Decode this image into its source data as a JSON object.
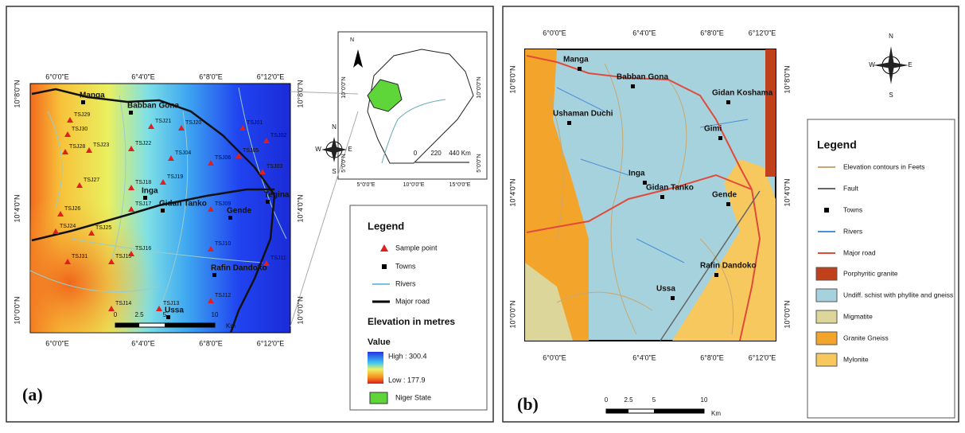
{
  "panel_a": {
    "label": "(a)",
    "x_labels": [
      "6°0'0\"E",
      "6°4'0\"E",
      "6°8'0\"E",
      "6°12'0\"E"
    ],
    "y_labels": [
      "10°8'0\"N",
      "10°4'0\"N",
      "10°0'0\"N"
    ],
    "towns": [
      "Manga",
      "Babban Gona",
      "Inga",
      "Gidan Tanko",
      "Gende",
      "Tegina",
      "Rafin Dandoko",
      "Ussa"
    ],
    "samples": [
      "TSJ29",
      "TSJ30",
      "TSJ28",
      "TSJ23",
      "TSJ22",
      "TSJ21",
      "TSJ20",
      "TSJ01",
      "TSJ02",
      "TSJ05",
      "TSJ04",
      "TSJ06",
      "TSJ03",
      "TSJ27",
      "TSJ18",
      "TSJ19",
      "TSJ26",
      "TSJ17",
      "TSJ09",
      "TSJ24",
      "TSJ25",
      "TSJ31",
      "TSJ15",
      "TSJ16",
      "TSJ10",
      "TSJ11",
      "TSJ14",
      "TSJ13",
      "TSJ12"
    ],
    "compass": [
      "N",
      "W",
      "E",
      "S"
    ],
    "inset": {
      "x_labels": [
        "5°0'0\"E",
        "10°0'0\"E",
        "15°0'0\"E"
      ],
      "y_labels": [
        "10°0'0\"N",
        "5°0'0\"N"
      ],
      "north": "N",
      "scale": [
        "0",
        "220",
        "440 Km"
      ]
    },
    "legend": {
      "title": "Legend",
      "items": [
        "Sample point",
        "Towns",
        "Rivers",
        "Major road"
      ],
      "elevation_title": "Elevation in metres",
      "value_title": "Value",
      "high": "High : 300.4",
      "low": "Low : 177.9",
      "niger": "Niger State"
    },
    "scale": [
      "0",
      "2.5",
      "5",
      "10",
      "Km"
    ]
  },
  "panel_b": {
    "label": "(b)",
    "x_labels": [
      "6°0'0\"E",
      "6°4'0\"E",
      "6°8'0\"E",
      "6°12'0\"E"
    ],
    "y_labels": [
      "10°8'0\"N",
      "10°4'0\"N",
      "10°0'0\"N"
    ],
    "towns": [
      "Manga",
      "Babban Gona",
      "Ushaman Duchi",
      "Gidan Koshama",
      "Gimi",
      "Inga",
      "Gidan Tanko",
      "Gende",
      "Rafin Dandoko",
      "Ussa"
    ],
    "compass": [
      "N",
      "W",
      "E",
      "S"
    ],
    "legend": {
      "title": "Legend",
      "items": [
        "Elevation contours in Feets",
        "Fault",
        "Towns",
        "Rivers",
        "Major road",
        "Porphyritic granite",
        "Undiff. schist with phyllite and gneiss",
        "Migmatite",
        "Granite Gneiss",
        "Mylonite"
      ]
    },
    "scale": [
      "0",
      "2.5",
      "5",
      "10",
      "Km"
    ]
  }
}
